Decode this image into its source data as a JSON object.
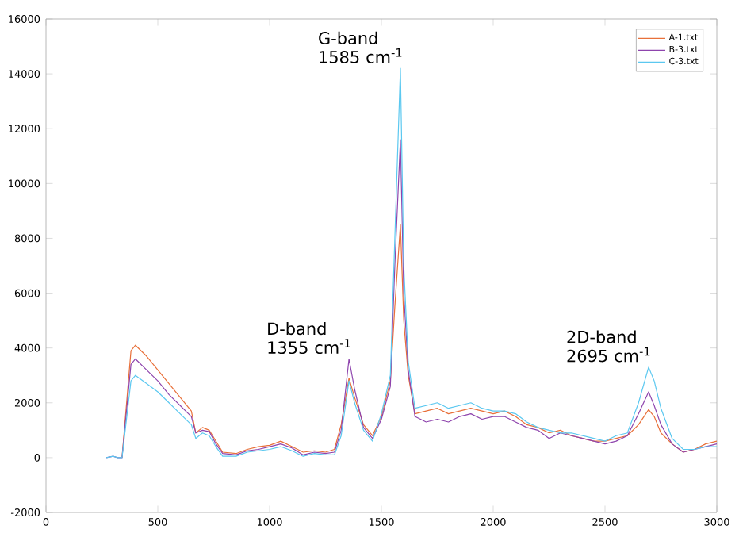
{
  "chart_data": {
    "type": "line",
    "xlim": [
      0,
      3000
    ],
    "ylim": [
      -2000,
      16000
    ],
    "xticks": [
      0,
      500,
      1000,
      1500,
      2000,
      2500,
      3000
    ],
    "yticks": [
      -2000,
      0,
      2000,
      4000,
      6000,
      8000,
      10000,
      12000,
      14000,
      16000
    ],
    "legend": "top right",
    "marker": "none",
    "line_style": "solid",
    "x": [
      270,
      300,
      320,
      340,
      380,
      400,
      450,
      500,
      550,
      600,
      650,
      670,
      700,
      730,
      760,
      790,
      850,
      900,
      950,
      1000,
      1050,
      1100,
      1150,
      1200,
      1250,
      1290,
      1320,
      1355,
      1380,
      1420,
      1460,
      1500,
      1540,
      1560,
      1585,
      1600,
      1620,
      1650,
      1700,
      1750,
      1800,
      1850,
      1900,
      1950,
      2000,
      2050,
      2100,
      2150,
      2200,
      2250,
      2300,
      2350,
      2400,
      2450,
      2500,
      2550,
      2600,
      2650,
      2695,
      2720,
      2750,
      2800,
      2850,
      2900,
      2950,
      3000
    ],
    "series": [
      {
        "name": "A-1.txt",
        "color": "#e8703a",
        "values": [
          null,
          null,
          null,
          0,
          3900,
          4100,
          3700,
          3200,
          2700,
          2200,
          1700,
          900,
          1100,
          1000,
          600,
          200,
          150,
          300,
          400,
          450,
          600,
          400,
          200,
          250,
          200,
          300,
          1200,
          2900,
          2200,
          1200,
          800,
          1500,
          2800,
          5500,
          8500,
          5000,
          3000,
          1600,
          1700,
          1800,
          1600,
          1700,
          1800,
          1700,
          1600,
          1700,
          1500,
          1200,
          1100,
          900,
          1000,
          800,
          700,
          600,
          600,
          700,
          800,
          1200,
          1750,
          1500,
          900,
          500,
          200,
          300,
          500,
          600
        ]
      },
      {
        "name": "B-3.txt",
        "color": "#8e44ad",
        "values": [
          0,
          50,
          0,
          0,
          3400,
          3600,
          3200,
          2800,
          2300,
          1900,
          1500,
          900,
          1000,
          950,
          500,
          150,
          100,
          250,
          300,
          400,
          500,
          350,
          100,
          200,
          150,
          200,
          1000,
          3600,
          2500,
          1100,
          700,
          1400,
          2600,
          7000,
          11600,
          6000,
          3200,
          1500,
          1300,
          1400,
          1300,
          1500,
          1600,
          1400,
          1500,
          1500,
          1300,
          1100,
          1000,
          700,
          900,
          800,
          700,
          600,
          500,
          600,
          800,
          1600,
          2400,
          1900,
          1200,
          500,
          200,
          300,
          400,
          500
        ]
      },
      {
        "name": "C-3.txt",
        "color": "#5bc8f0",
        "values": [
          0,
          50,
          0,
          0,
          2800,
          3000,
          2700,
          2400,
          2000,
          1600,
          1200,
          700,
          900,
          800,
          400,
          50,
          50,
          200,
          250,
          300,
          400,
          250,
          50,
          150,
          100,
          100,
          800,
          2800,
          2000,
          1000,
          600,
          1600,
          3000,
          8000,
          14200,
          7000,
          3500,
          1800,
          1900,
          2000,
          1800,
          1900,
          2000,
          1800,
          1700,
          1700,
          1600,
          1300,
          1100,
          1000,
          900,
          900,
          800,
          700,
          600,
          800,
          900,
          2000,
          3300,
          2800,
          1800,
          700,
          300,
          300,
          400,
          400
        ]
      }
    ],
    "annotations": [
      {
        "text": "D-band 1355 cm$^{-1}$",
        "x": 1355,
        "y": 3600
      },
      {
        "text": "G-band 1585 cm$^{-1}$",
        "x": 1585,
        "y": 14200
      },
      {
        "text": "2D-band 2695 cm$^{-1}$",
        "x": 2695,
        "y": 3300
      }
    ]
  }
}
